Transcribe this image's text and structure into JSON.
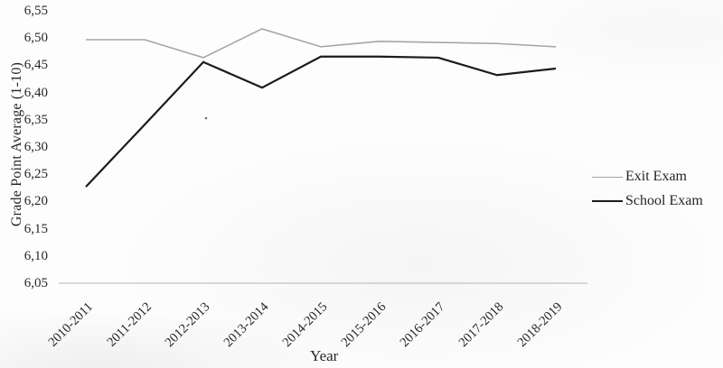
{
  "chart_data": {
    "type": "line",
    "title": "",
    "xlabel": "Year",
    "ylabel": "Grade Point Average (1-10)",
    "categories": [
      "2010-2011",
      "2011-2012",
      "2012-2013",
      "2013-2014",
      "2014-2015",
      "2015-2016",
      "2016-2017",
      "2017-2018",
      "2018-2019"
    ],
    "series": [
      {
        "name": "Exit Exam",
        "color": "#a5a5a5",
        "line_width": 1.6,
        "values": [
          6.497,
          6.497,
          6.464,
          6.517,
          6.484,
          6.494,
          6.492,
          6.49,
          6.484
        ]
      },
      {
        "name": "School Exam",
        "color": "#1b1b1b",
        "line_width": 2.2,
        "values": [
          6.227,
          6.341,
          6.456,
          6.409,
          6.466,
          6.466,
          6.464,
          6.432,
          6.444
        ]
      }
    ],
    "ylim": [
      6.05,
      6.55
    ],
    "y_tick_step": 0.05,
    "y_tick_labels": [
      "6,55",
      "6,50",
      "6,45",
      "6,40",
      "6,35",
      "6,30",
      "6,25",
      "6,20",
      "6,15",
      "6,10",
      "6,05"
    ],
    "decimal_separator": ",",
    "grid": false,
    "legend_position": "right",
    "axis_line_color": "#b4b4b4"
  }
}
